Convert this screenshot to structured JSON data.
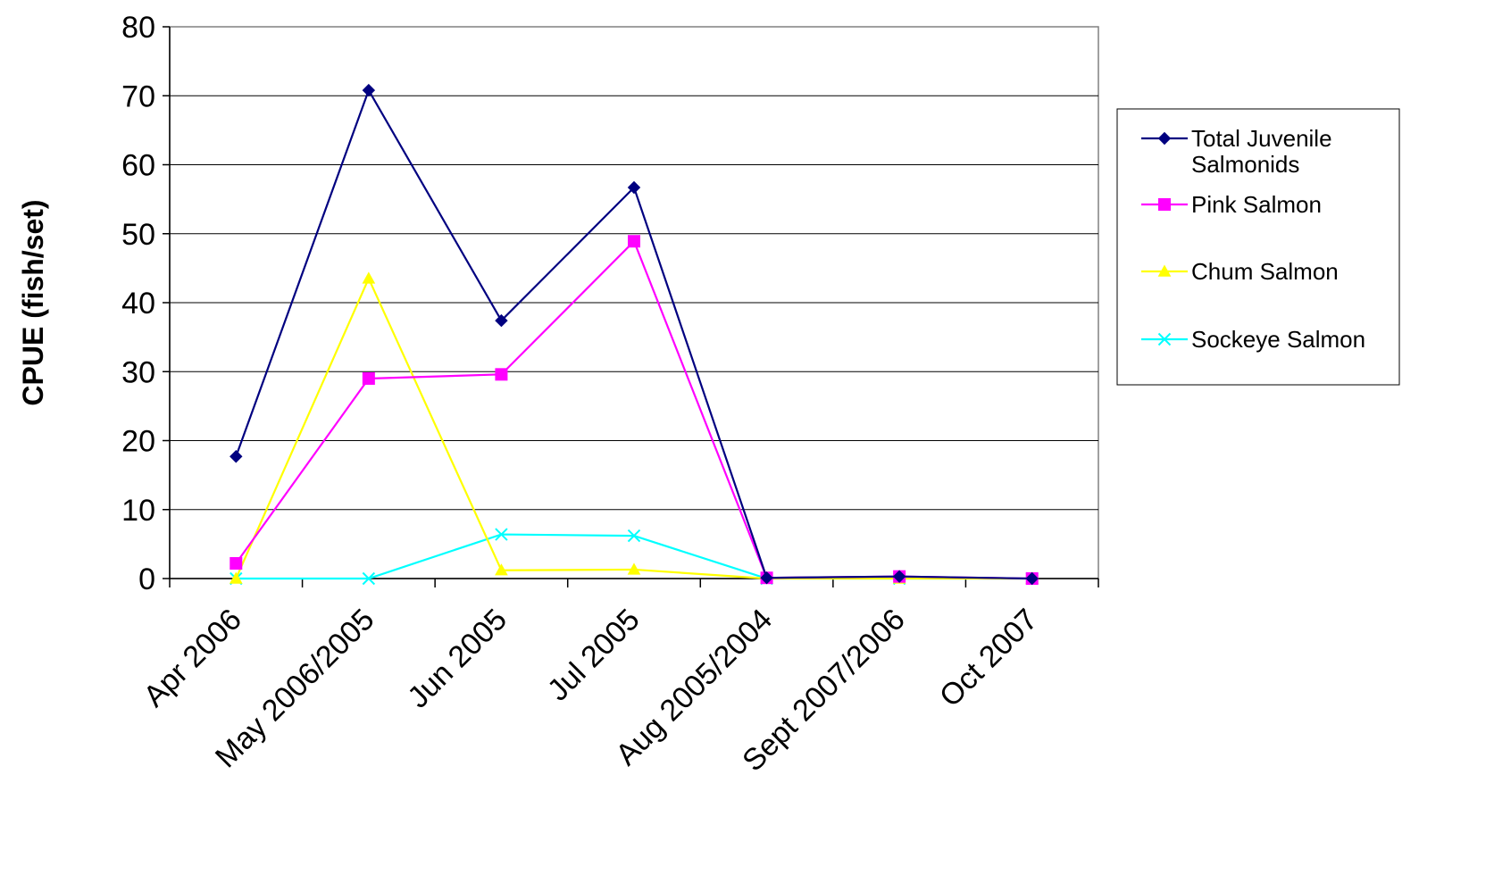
{
  "chart_data": {
    "type": "line",
    "title": "",
    "xlabel": "",
    "ylabel": "CPUE (fish/set)",
    "ylim": [
      0,
      80
    ],
    "yticks": [
      0,
      10,
      20,
      30,
      40,
      50,
      60,
      70,
      80
    ],
    "grid": "horizontal",
    "legend_position": "right",
    "categories": [
      "Apr 2006",
      "May 2006/2005",
      "Jun 2005",
      "Jul 2005",
      "Aug 2005/2004",
      "Sept 2007/2006",
      "Oct 2007"
    ],
    "series": [
      {
        "name": "Total Juvenile Salmonids",
        "legend_lines": [
          "Total Juvenile",
          "Salmonids"
        ],
        "color": "#000080",
        "marker": "diamond",
        "values": [
          17.7,
          70.8,
          37.4,
          56.7,
          0.1,
          0.3,
          0.0
        ]
      },
      {
        "name": "Pink Salmon",
        "legend_lines": [
          "Pink Salmon"
        ],
        "color": "#FF00FF",
        "marker": "square",
        "values": [
          2.2,
          29.0,
          29.6,
          48.9,
          0.1,
          0.3,
          0.0
        ]
      },
      {
        "name": "Chum Salmon",
        "legend_lines": [
          "Chum Salmon"
        ],
        "color": "#FFFF00",
        "marker": "triangle",
        "values": [
          0.0,
          43.5,
          1.2,
          1.3,
          0.0,
          0.0,
          0.0
        ]
      },
      {
        "name": "Sockeye Salmon",
        "legend_lines": [
          "Sockeye Salmon"
        ],
        "color": "#00FFFF",
        "marker": "x",
        "values": [
          0.0,
          0.0,
          6.4,
          6.2,
          0.0,
          0.0,
          0.0
        ]
      }
    ]
  }
}
